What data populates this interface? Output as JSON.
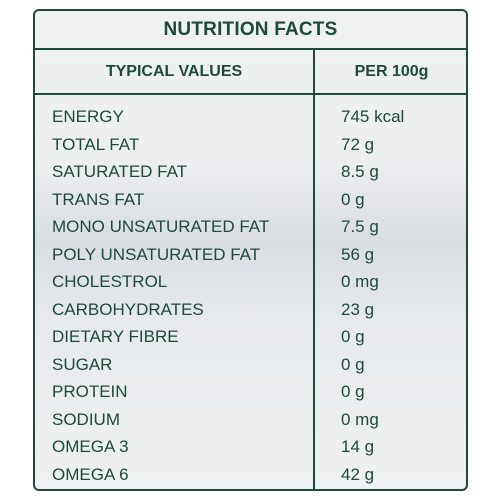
{
  "title": "NUTRITION FACTS",
  "header": {
    "typical_values": "TYPICAL VALUES",
    "per_100g": "PER 100g"
  },
  "colors": {
    "text": "#1f4a3b",
    "border": "#1f4a3b",
    "panel_background": "#eceef0"
  },
  "rows": [
    {
      "name": "ENERGY",
      "value": "745 kcal"
    },
    {
      "name": "TOTAL FAT",
      "value": "72 g"
    },
    {
      "name": "SATURATED FAT",
      "value": "8.5 g"
    },
    {
      "name": "TRANS FAT",
      "value": "0 g"
    },
    {
      "name": "MONO UNSATURATED FAT",
      "value": "7.5 g"
    },
    {
      "name": "POLY UNSATURATED FAT",
      "value": "56 g"
    },
    {
      "name": "CHOLESTROL",
      "value": "0 mg"
    },
    {
      "name": "CARBOHYDRATES",
      "value": "23 g"
    },
    {
      "name": "DIETARY FIBRE",
      "value": "0 g"
    },
    {
      "name": "SUGAR",
      "value": "0 g"
    },
    {
      "name": "PROTEIN",
      "value": "0 g"
    },
    {
      "name": "SODIUM",
      "value": "0 mg"
    },
    {
      "name": "OMEGA 3",
      "value": "14 g"
    },
    {
      "name": "OMEGA 6",
      "value": "42 g"
    }
  ]
}
